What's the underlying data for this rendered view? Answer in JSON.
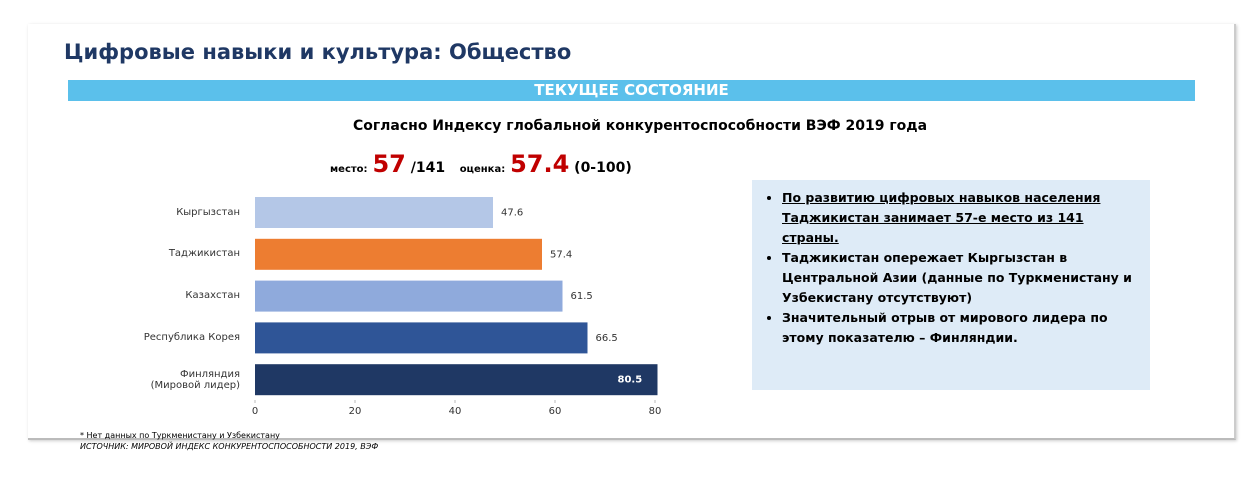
{
  "header": {
    "title": "Цифровые навыки и культура: Общество",
    "banner": "ТЕКУЩЕЕ СОСТОЯНИЕ",
    "subtitle": "Согласно Индексу глобальной конкурентоспособности ВЭФ 2019 года"
  },
  "score": {
    "rank_label": "место:",
    "rank": 57,
    "rank_total": "/141",
    "score_label": "оценка:",
    "score": 57.4,
    "range": "(0-100)"
  },
  "chart_data": {
    "type": "barh",
    "categories": [
      "Кыргызстан",
      "Таджикистан",
      "Казахстан",
      "Республика Корея",
      "Финляндия\n(Мировой лидер)"
    ],
    "values": [
      47.6,
      57.4,
      61.5,
      66.5,
      80.5
    ],
    "colors": [
      "#b4c7e7",
      "#ed7d31",
      "#8faadc",
      "#2f5597",
      "#1f3864"
    ],
    "xlim": [
      0,
      80
    ],
    "xticks": [
      0,
      20,
      40,
      60,
      80
    ]
  },
  "notes": {
    "bullets": [
      "По развитию цифровых навыков населения Таджикистан занимает 57-е место из 141 страны.",
      "Таджикистан опережает Кыргызстан в Центральной Азии (данные по Туркменистану и Узбекистану отсутствуют)",
      "Значительный отрыв от мирового лидера по этому показателю – Финляндии."
    ]
  },
  "footer": {
    "note": "* Нет данных по Туркменистану и Узбекистану",
    "source": "ИСТОЧНИК: МИРОВОЙ ИНДЕКС КОНКУРЕНТОСПОСОБНОСТИ 2019, ВЭФ"
  }
}
